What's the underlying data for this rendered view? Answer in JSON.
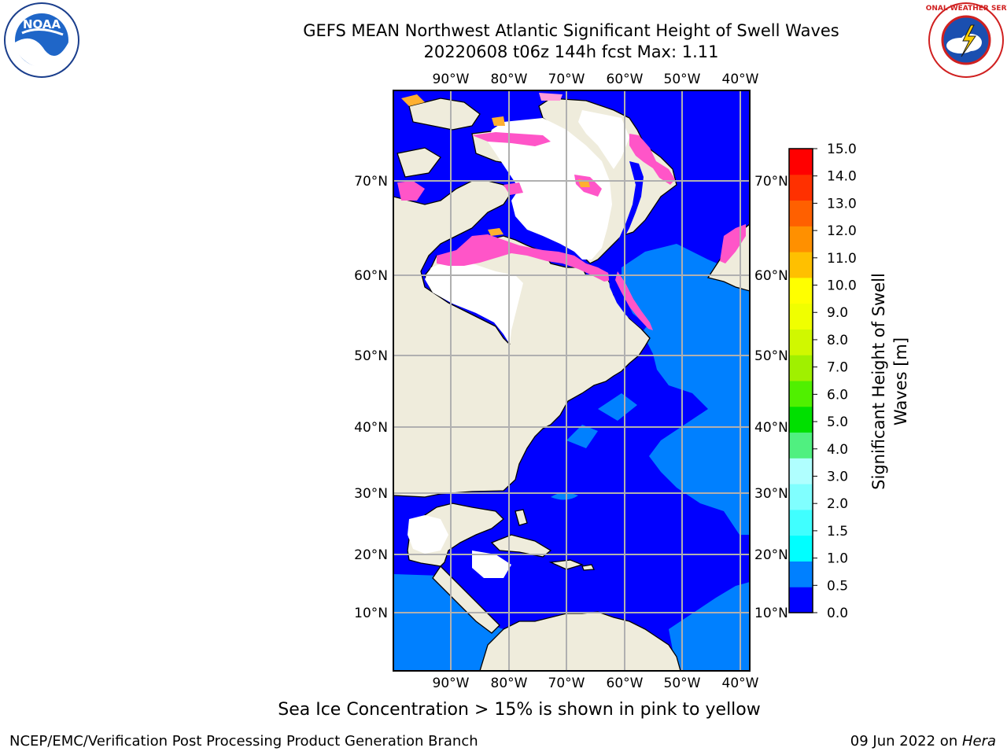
{
  "header": {
    "title_line1": "GEFS MEAN Northwest Atlantic Significant Height of Swell Waves",
    "title_line2": "20220608 t06z 144h fcst   Max: 1.11"
  },
  "logos": {
    "left": "NOAA",
    "right": "NATIONAL WEATHER SERVICE"
  },
  "map": {
    "lon_labels": [
      "90°W",
      "80°W",
      "70°W",
      "60°W",
      "50°W",
      "40°W"
    ],
    "lat_labels": [
      "70°N",
      "60°N",
      "50°N",
      "40°N",
      "30°N",
      "20°N",
      "10°N"
    ],
    "colors": {
      "land": "#efecdc",
      "ice_free_white": "#ffffff",
      "grid": "#b0b0b0",
      "ice_pink": "#ff55c8",
      "ice_orange": "#ffb030"
    }
  },
  "colorbar": {
    "label_line1": "Significant Height of Swell",
    "label_line2": "Waves [m]",
    "ticks": [
      "15.0",
      "14.0",
      "13.0",
      "12.0",
      "11.0",
      "10.0",
      "9.0",
      "8.0",
      "7.0",
      "6.0",
      "5.0",
      "4.0",
      "3.0",
      "2.0",
      "1.5",
      "1.0",
      "0.5",
      "0.0"
    ],
    "colors_bottom_to_top": [
      "#0000ff",
      "#0080ff",
      "#00ffff",
      "#40ffff",
      "#80ffff",
      "#b0ffff",
      "#50f080",
      "#00e000",
      "#50f000",
      "#a0f000",
      "#d0f800",
      "#f0ff00",
      "#ffff00",
      "#ffc000",
      "#ff9000",
      "#ff6000",
      "#ff3000",
      "#ff0000"
    ]
  },
  "caption": "Sea Ice Concentration > 15% is shown in pink to yellow",
  "footer": {
    "left": "NCEP/EMC/Verification Post Processing Product Generation Branch",
    "right_prefix": "09 Jun 2022 on ",
    "right_host": "Hera"
  }
}
